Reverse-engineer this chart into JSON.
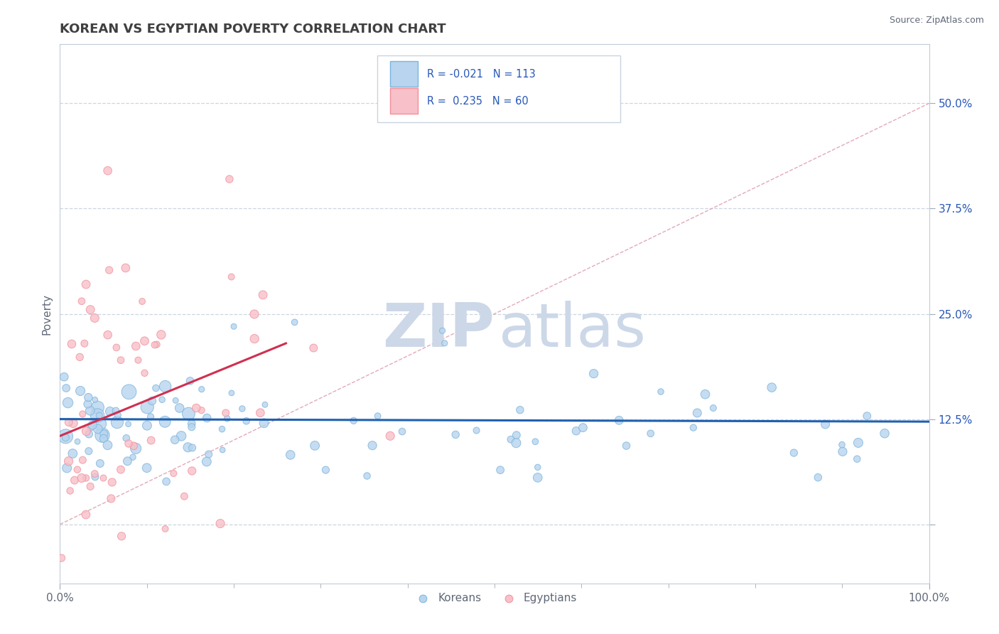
{
  "title": "KOREAN VS EGYPTIAN POVERTY CORRELATION CHART",
  "source": "Source: ZipAtlas.com",
  "ylabel": "Poverty",
  "xlim": [
    0.0,
    1.0
  ],
  "ylim": [
    -0.07,
    0.57
  ],
  "yticks": [
    0.0,
    0.125,
    0.25,
    0.375,
    0.5
  ],
  "ytick_labels": [
    "",
    "12.5%",
    "25.0%",
    "37.5%",
    "50.0%"
  ],
  "xticks": [
    0.0,
    1.0
  ],
  "xtick_labels": [
    "0.0%",
    "100.0%"
  ],
  "korean_R": -0.021,
  "korean_N": 113,
  "egyptian_R": 0.235,
  "egyptian_N": 60,
  "korean_color": "#7ab4dc",
  "korean_fill": "#b8d4ee",
  "egyptian_color": "#f0909c",
  "egyptian_fill": "#f8c0c8",
  "trend_korean_color": "#2060b0",
  "trend_egyptian_color": "#d03050",
  "diagonal_color": "#e0a0b0",
  "background_color": "#ffffff",
  "grid_color": "#c0ccd8",
  "title_color": "#404040",
  "axis_label_color": "#606878",
  "stats_color": "#2858b8",
  "watermark_color": "#ccd8e8",
  "korean_trend_x": [
    0.0,
    1.0
  ],
  "korean_trend_y": [
    0.125,
    0.122
  ],
  "egyptian_trend_x": [
    0.0,
    0.26
  ],
  "egyptian_trend_y": [
    0.105,
    0.215
  ]
}
